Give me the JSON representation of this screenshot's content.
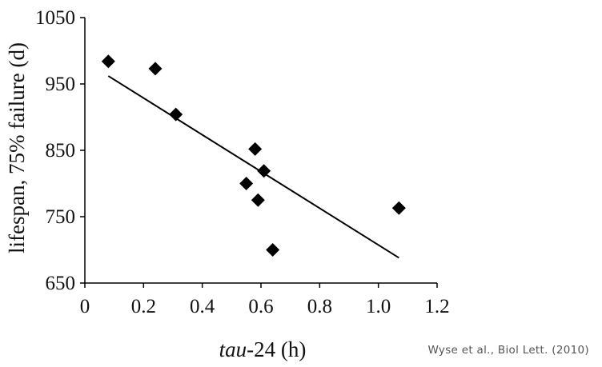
{
  "chart_data": {
    "type": "scatter",
    "xlabel_italic": "tau",
    "xlabel_rest": "-24 (h)",
    "ylabel": "lifespan, 75% failure (d)",
    "xlim": [
      0,
      1.2
    ],
    "ylim": [
      650,
      1050
    ],
    "x_ticks": [
      "0",
      "0.2",
      "0.4",
      "0.6",
      "0.8",
      "1.0",
      "1.2"
    ],
    "x_tick_values": [
      0,
      0.2,
      0.4,
      0.6,
      0.8,
      1.0,
      1.2
    ],
    "y_ticks": [
      "650",
      "750",
      "850",
      "950",
      "1050"
    ],
    "y_tick_values": [
      650,
      750,
      850,
      950,
      1050
    ],
    "grid": false,
    "marker": "diamond",
    "points": [
      {
        "x": 0.08,
        "y": 984
      },
      {
        "x": 0.24,
        "y": 973
      },
      {
        "x": 0.31,
        "y": 904
      },
      {
        "x": 0.55,
        "y": 800
      },
      {
        "x": 0.58,
        "y": 852
      },
      {
        "x": 0.59,
        "y": 775
      },
      {
        "x": 0.61,
        "y": 819
      },
      {
        "x": 0.64,
        "y": 700
      },
      {
        "x": 1.07,
        "y": 763
      }
    ],
    "trendline": {
      "x": [
        0.08,
        1.07
      ],
      "y": [
        962,
        688
      ]
    }
  },
  "credit": "Wyse et al., Biol Lett. (2010)"
}
